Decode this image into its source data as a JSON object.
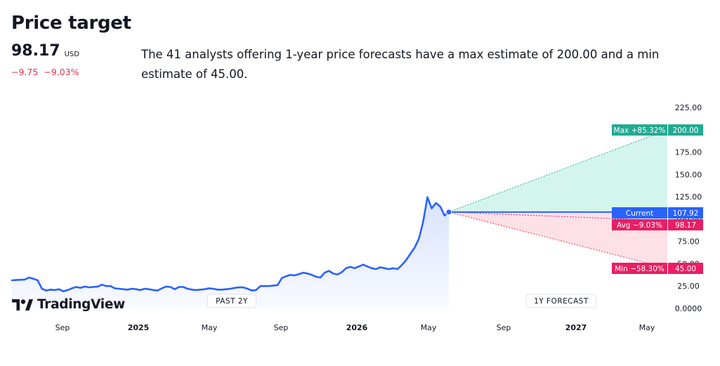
{
  "header": {
    "title": "Price target",
    "price": "98.17",
    "currency": "USD",
    "change_abs": "−9.75",
    "change_pct": "−9.03%",
    "summary": "The 41 analysts offering 1-year price forecasts have a max estimate of 200.00 and a min estimate of 45.00."
  },
  "logo": {
    "text": "TradingView",
    "icon": "tradingview-logo-icon"
  },
  "colors": {
    "line": "#2962ff",
    "max": "#22ab94",
    "max_fill": "#d4f5ee",
    "min": "#f23645",
    "min_fill": "#fde1e7",
    "avg": "#e91e63",
    "current": "#2962ff"
  },
  "chart_data": {
    "type": "line",
    "x_labels": [
      {
        "label": "Sep",
        "bold": false
      },
      {
        "label": "2025",
        "bold": true
      },
      {
        "label": "May",
        "bold": false
      },
      {
        "label": "Sep",
        "bold": false
      },
      {
        "label": "2026",
        "bold": true
      },
      {
        "label": "May",
        "bold": false
      },
      {
        "label": "Sep",
        "bold": false
      },
      {
        "label": "2027",
        "bold": true
      },
      {
        "label": "May",
        "bold": false
      }
    ],
    "y_ticks": [
      "225.00",
      "200.00",
      "175.00",
      "150.00",
      "125.00",
      "100.00",
      "75.00",
      "50.00",
      "25.00",
      "0.0000"
    ],
    "ylim": [
      0,
      225
    ],
    "periods": {
      "past": "PAST 2Y",
      "forecast": "1Y FORECAST"
    },
    "series": [
      {
        "values": [
          31.5,
          31.8,
          32.0,
          32.3,
          34.5,
          33.2,
          31.5,
          22.0,
          20.0,
          21.0,
          20.5,
          21.5,
          19.0,
          20.5,
          22.5,
          24.0,
          23.0,
          24.5,
          23.5,
          24.0,
          24.5,
          26.5,
          25.0,
          25.0,
          22.5,
          22.0,
          21.5,
          21.0,
          22.0,
          21.5,
          20.5,
          22.0,
          21.5,
          20.5,
          20.0,
          22.5,
          24.5,
          24.0,
          21.5,
          24.0,
          24.0,
          22.0,
          21.0,
          20.5,
          21.0,
          21.5,
          22.5,
          22.0,
          21.0,
          21.0,
          21.5,
          22.0,
          23.0,
          23.5,
          23.5,
          22.0,
          20.0,
          20.5,
          25.0,
          25.0,
          25.0,
          25.5,
          26.0,
          34.0,
          36.0,
          37.5,
          37.0,
          38.5,
          40.0,
          39.0,
          37.5,
          35.5,
          34.5,
          40.0,
          42.0,
          39.0,
          38.0,
          40.5,
          45.0,
          46.5,
          45.0,
          47.0,
          49.0,
          47.0,
          45.0,
          44.0,
          46.0,
          45.0,
          44.0,
          45.0,
          44.0,
          48.5,
          54.0,
          61.0,
          68.0,
          78.0,
          97.0,
          124.5,
          112.0,
          118.0,
          114.0,
          104.0,
          107.92
        ]
      }
    ],
    "current": {
      "label": "Current",
      "value": 107.92,
      "value_text": "107.92"
    },
    "forecasts": [
      {
        "id": "max",
        "label": "Max +85.32%",
        "value": 200.0,
        "value_text": "200.00"
      },
      {
        "id": "avg",
        "label": "Avg −9.03%",
        "value": 98.17,
        "value_text": "98.17"
      },
      {
        "id": "min",
        "label": "Min −58.30%",
        "value": 45.0,
        "value_text": "45.00"
      }
    ]
  }
}
